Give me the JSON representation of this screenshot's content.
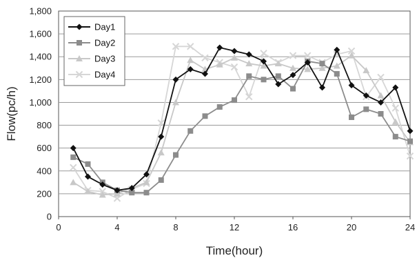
{
  "chart_data": {
    "type": "line",
    "title": "",
    "xlabel": "Time(hour)",
    "ylabel": "Flow(pc/h)",
    "xlim": [
      0,
      24
    ],
    "ylim": [
      0,
      1800
    ],
    "xticks": [
      0,
      4,
      8,
      12,
      16,
      20,
      24
    ],
    "xtick_labels": [
      "0",
      "4",
      "8",
      "12",
      "16",
      "20",
      "24"
    ],
    "yticks": [
      0,
      200,
      400,
      600,
      800,
      1000,
      1200,
      1400,
      1600,
      1800
    ],
    "ytick_labels": [
      "0",
      "200",
      "400",
      "600",
      "800",
      "1,000",
      "1,200",
      "1,400",
      "1,600",
      "1,800"
    ],
    "grid": "horizontal",
    "legend_position": "top-left",
    "series": [
      {
        "name": "Day1",
        "color": "#111111",
        "marker": "diamond",
        "x": [
          1,
          2,
          3,
          4,
          5,
          6,
          7,
          8,
          9,
          10,
          11,
          12,
          13,
          14,
          15,
          16,
          17,
          18,
          19,
          20,
          21,
          22,
          23,
          24
        ],
        "y": [
          600,
          350,
          280,
          230,
          250,
          370,
          700,
          1200,
          1290,
          1250,
          1480,
          1450,
          1420,
          1360,
          1160,
          1240,
          1350,
          1130,
          1460,
          1150,
          1060,
          1000,
          1130,
          750
        ]
      },
      {
        "name": "Day2",
        "color": "#8c8c8c",
        "marker": "square",
        "x": [
          1,
          2,
          3,
          4,
          5,
          6,
          7,
          8,
          9,
          10,
          11,
          12,
          13,
          14,
          15,
          16,
          17,
          18,
          19,
          20,
          21,
          22,
          23,
          24
        ],
        "y": [
          520,
          460,
          300,
          230,
          210,
          210,
          320,
          540,
          750,
          880,
          960,
          1020,
          1230,
          1200,
          1230,
          1120,
          1360,
          1340,
          1250,
          870,
          940,
          900,
          700,
          660
        ]
      },
      {
        "name": "Day3",
        "color": "#c8c8c8",
        "marker": "triangle",
        "x": [
          1,
          2,
          3,
          4,
          5,
          6,
          7,
          8,
          9,
          10,
          11,
          12,
          13,
          14,
          15,
          16,
          17,
          18,
          19,
          20,
          21,
          22,
          23,
          24
        ],
        "y": [
          300,
          220,
          190,
          200,
          250,
          300,
          560,
          1000,
          1370,
          1290,
          1330,
          1390,
          1340,
          1320,
          1340,
          1300,
          1290,
          1300,
          1320,
          1410,
          1280,
          1060,
          830,
          650
        ]
      },
      {
        "name": "Day4",
        "color": "#d6d6d6",
        "marker": "x",
        "x": [
          1,
          2,
          3,
          4,
          5,
          6,
          7,
          8,
          9,
          10,
          11,
          12,
          13,
          14,
          15,
          16,
          17,
          18,
          19,
          20,
          21,
          22,
          23,
          24
        ],
        "y": [
          430,
          230,
          220,
          160,
          240,
          290,
          820,
          1490,
          1490,
          1390,
          1350,
          1310,
          1050,
          1430,
          1350,
          1410,
          1410,
          1350,
          1420,
          1450,
          1050,
          1220,
          950,
          530
        ]
      }
    ]
  }
}
